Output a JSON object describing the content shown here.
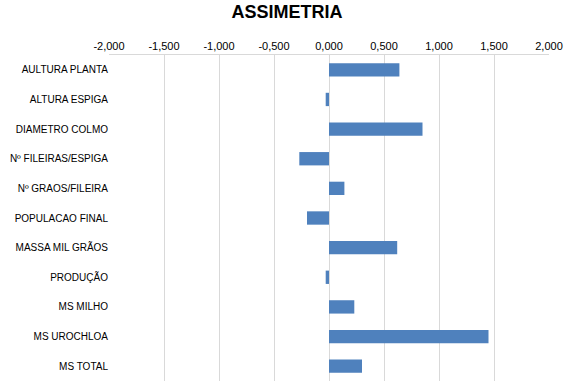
{
  "chart_data": {
    "type": "bar",
    "title": "ASSIMETRIA",
    "orientation": "horizontal",
    "categories": [
      "AULTURA PLANTA",
      "ALTURA ESPIGA",
      "DIAMETRO COLMO",
      "Nº FILEIRAS/ESPIGA",
      "Nº GRAOS/FILEIRA",
      "POPULACAO FINAL",
      "MASSA MIL GRÃOS",
      "PRODUÇÃO",
      "MS MILHO",
      "MS UROCHLOA",
      "MS TOTAL"
    ],
    "values": [
      0.64,
      -0.03,
      0.85,
      -0.27,
      0.14,
      -0.2,
      0.62,
      -0.03,
      0.23,
      1.45,
      0.3
    ],
    "color": "#4f81bd",
    "xlim": [
      -2,
      2
    ],
    "xticks": [
      {
        "value": -2,
        "label": "-2,000"
      },
      {
        "value": -1.5,
        "label": "-1,500"
      },
      {
        "value": -1,
        "label": "-1,000"
      },
      {
        "value": -0.5,
        "label": "-0,500"
      },
      {
        "value": 0,
        "label": "0,000"
      },
      {
        "value": 0.5,
        "label": "0,500"
      },
      {
        "value": 1,
        "label": "1,000"
      },
      {
        "value": 1.5,
        "label": "1,500"
      },
      {
        "value": 2,
        "label": "2,000"
      }
    ],
    "grid": true
  }
}
